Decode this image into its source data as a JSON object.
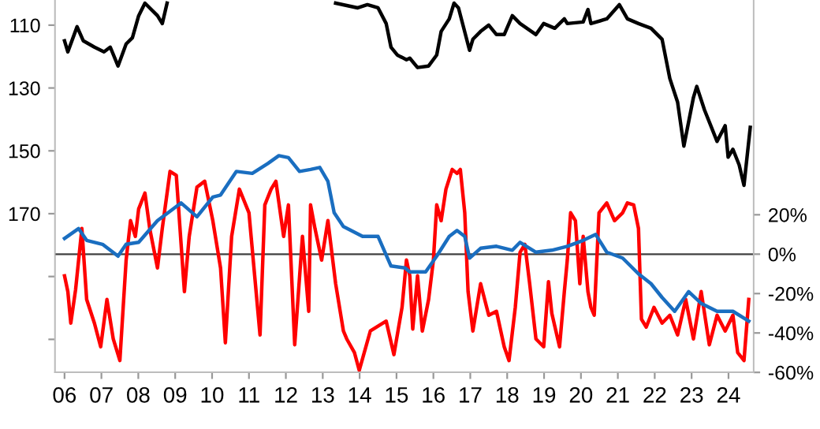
{
  "chart_data": {
    "type": "line",
    "grid": false,
    "marker": "none",
    "line_style": "solid",
    "xlim": [
      2005.74,
      2024.68
    ],
    "xticks": [
      {
        "value": 2006,
        "label": "06"
      },
      {
        "value": 2007,
        "label": "07"
      },
      {
        "value": 2008,
        "label": "08"
      },
      {
        "value": 2009,
        "label": "09"
      },
      {
        "value": 2010,
        "label": "10"
      },
      {
        "value": 2011,
        "label": "11"
      },
      {
        "value": 2012,
        "label": "12"
      },
      {
        "value": 2013,
        "label": "13"
      },
      {
        "value": 2014,
        "label": "14"
      },
      {
        "value": 2015,
        "label": "15"
      },
      {
        "value": 2016,
        "label": "16"
      },
      {
        "value": 2017,
        "label": "17"
      },
      {
        "value": 2018,
        "label": "18"
      },
      {
        "value": 2019,
        "label": "19"
      },
      {
        "value": 2020,
        "label": "20"
      },
      {
        "value": 2021,
        "label": "21"
      },
      {
        "value": 2022,
        "label": "22"
      },
      {
        "value": 2023,
        "label": "23"
      },
      {
        "value": 2024,
        "label": "24"
      }
    ],
    "ylim": [
      220.5,
      102
    ],
    "yticks": [
      110,
      130,
      150,
      170,
      {
        "value": 190,
        "label": null
      },
      {
        "value": 210,
        "label": null
      }
    ],
    "y2lim": [
      -60,
      129
    ],
    "y2ticks": [
      {
        "value": 20,
        "label": "20%"
      },
      {
        "value": 0,
        "label": "0%"
      },
      {
        "value": -20,
        "label": "-20%"
      },
      {
        "value": -40,
        "label": "-40%"
      },
      {
        "value": -60,
        "label": "-60%"
      }
    ],
    "ref_lines": [
      {
        "axis": "y2",
        "value": 0,
        "color": "#404040"
      }
    ],
    "series": [
      {
        "color": "#000000",
        "x": [
          2006.0,
          2006.09,
          2006.34,
          2006.51,
          2006.81,
          2007.07,
          2007.24,
          2007.45,
          2007.67,
          2007.84,
          2008.01,
          2008.18,
          2008.52,
          2008.65,
          2008.78,
          2010.5,
          2013.35,
          2013.95,
          2014.21,
          2014.5,
          2014.72,
          2014.85,
          2015.02,
          2015.27,
          2015.36,
          2015.57,
          2015.87,
          2016.09,
          2016.21,
          2016.43,
          2016.56,
          2016.68,
          2016.98,
          2017.07,
          2017.28,
          2017.5,
          2017.71,
          2017.92,
          2018.14,
          2018.35,
          2018.78,
          2018.99,
          2019.29,
          2019.55,
          2019.63,
          2020.06,
          2020.19,
          2020.27,
          2020.7,
          2021.04,
          2021.26,
          2021.56,
          2021.9,
          2022.2,
          2022.41,
          2022.62,
          2022.79,
          2023.05,
          2023.14,
          2023.35,
          2023.52,
          2023.69,
          2023.91,
          2023.99,
          2024.12,
          2024.29,
          2024.42,
          2024.59
        ],
        "values": [
          115,
          118.5,
          110.5,
          115,
          117,
          118.5,
          117,
          123,
          116,
          114,
          107,
          103,
          107,
          109.5,
          103,
          null,
          103,
          104.5,
          103.5,
          104.5,
          109.5,
          117,
          119.5,
          121,
          120.5,
          123.5,
          123,
          119.5,
          112,
          108,
          103,
          104.5,
          118,
          114.5,
          112,
          110,
          113,
          113,
          107,
          109.5,
          113,
          109.5,
          111,
          108,
          109.5,
          109,
          105,
          109.5,
          108,
          103.5,
          108,
          109.5,
          111,
          114.5,
          127,
          134.5,
          148.5,
          133,
          129.5,
          137,
          142,
          147,
          142,
          152,
          149.5,
          154.5,
          161,
          142.5
        ]
      },
      {
        "color": "#ff0000",
        "axis": "y2",
        "x": [
          2006.0,
          2006.09,
          2006.17,
          2006.3,
          2006.47,
          2006.6,
          2006.81,
          2006.98,
          2007.15,
          2007.32,
          2007.5,
          2007.67,
          2007.79,
          2007.92,
          2008.01,
          2008.18,
          2008.31,
          2008.52,
          2008.65,
          2008.86,
          2009.03,
          2009.25,
          2009.38,
          2009.59,
          2009.8,
          2010.02,
          2010.23,
          2010.36,
          2010.53,
          2010.74,
          2011.0,
          2011.3,
          2011.43,
          2011.6,
          2011.73,
          2011.94,
          2012.07,
          2012.24,
          2012.45,
          2012.62,
          2012.67,
          2012.79,
          2012.97,
          2013.14,
          2013.35,
          2013.56,
          2013.65,
          2013.86,
          2013.99,
          2014.29,
          2014.72,
          2014.93,
          2015.15,
          2015.27,
          2015.36,
          2015.44,
          2015.57,
          2015.7,
          2015.87,
          2016.0,
          2016.09,
          2016.21,
          2016.34,
          2016.51,
          2016.64,
          2016.73,
          2016.85,
          2016.94,
          2017.07,
          2017.28,
          2017.5,
          2017.71,
          2017.92,
          2018.05,
          2018.22,
          2018.35,
          2018.48,
          2018.61,
          2018.78,
          2018.99,
          2019.12,
          2019.21,
          2019.42,
          2019.55,
          2019.63,
          2019.72,
          2019.85,
          2019.97,
          2020.06,
          2020.19,
          2020.27,
          2020.36,
          2020.49,
          2020.7,
          2020.91,
          2021.13,
          2021.26,
          2021.43,
          2021.56,
          2021.64,
          2021.77,
          2021.98,
          2022.2,
          2022.41,
          2022.62,
          2022.84,
          2023.05,
          2023.26,
          2023.48,
          2023.69,
          2023.91,
          2024.12,
          2024.25,
          2024.42,
          2024.55
        ],
        "values": [
          -11,
          -19,
          -35,
          -18,
          13,
          -23,
          -35,
          -47,
          -23,
          -43,
          -54,
          -3,
          17,
          9,
          23,
          31,
          13,
          -7,
          13,
          42,
          40,
          -19,
          9,
          34,
          37,
          17,
          -7,
          -45,
          9,
          33,
          21,
          -41,
          25,
          33,
          37,
          9,
          25,
          -46,
          9,
          -29,
          25,
          13,
          -3,
          17,
          -15,
          -39,
          -43,
          -50,
          -59,
          -39,
          -34,
          -51,
          -27,
          -3,
          -11,
          -38,
          -11,
          -39,
          -23,
          -3,
          25,
          17,
          33,
          43,
          41,
          43,
          21,
          -19,
          -39,
          -15,
          -31,
          -29,
          -47,
          -54,
          -27,
          1,
          5,
          -15,
          -43,
          -47,
          -14,
          -30,
          -47,
          -19,
          -3,
          21,
          17,
          -15,
          9,
          -19,
          -27,
          -31,
          21,
          26,
          17,
          21,
          26,
          25,
          13,
          -33,
          -37,
          -27,
          -35,
          -31,
          -41,
          -23,
          -43,
          -19,
          -46,
          -31,
          -39,
          -31,
          -50,
          -54,
          -23
        ]
      },
      {
        "color": "#1a6ec0",
        "axis": "y2",
        "x": [
          2006.0,
          2006.38,
          2006.6,
          2007.03,
          2007.45,
          2007.67,
          2008.01,
          2008.52,
          2008.95,
          2009.16,
          2009.59,
          2010.02,
          2010.23,
          2010.66,
          2011.09,
          2011.51,
          2011.81,
          2012.07,
          2012.37,
          2012.67,
          2012.92,
          2013.14,
          2013.31,
          2013.56,
          2014.08,
          2014.5,
          2014.85,
          2015.23,
          2015.36,
          2015.79,
          2016.09,
          2016.43,
          2016.64,
          2016.85,
          2016.98,
          2017.28,
          2017.71,
          2018.14,
          2018.35,
          2018.78,
          2019.21,
          2019.63,
          2020.06,
          2020.4,
          2020.7,
          2021.13,
          2021.56,
          2021.9,
          2022.2,
          2022.54,
          2022.92,
          2023.26,
          2023.69,
          2024.12,
          2024.55
        ],
        "values": [
          8,
          13,
          7,
          5,
          -1,
          5,
          6,
          17,
          23,
          26,
          19,
          29,
          30,
          42,
          41,
          46,
          50,
          49,
          42,
          43,
          44,
          37,
          21,
          14,
          9,
          9,
          -6,
          -7,
          -9,
          -9,
          -1,
          9,
          12,
          9,
          -2,
          3,
          4,
          2,
          6,
          1,
          2,
          4,
          7,
          10,
          1,
          -2,
          -10,
          -15,
          -22,
          -29,
          -19,
          -25,
          -29,
          -29,
          -34
        ]
      }
    ]
  }
}
